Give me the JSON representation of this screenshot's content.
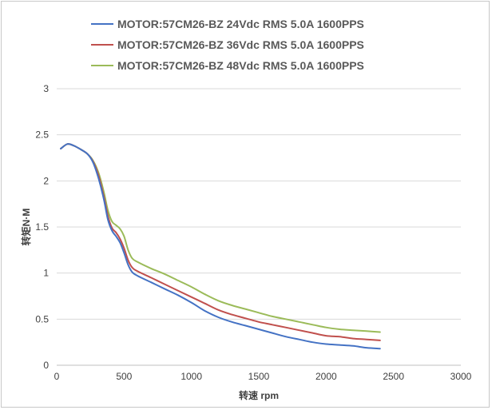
{
  "chart_data": {
    "type": "line",
    "title": "",
    "xlabel": "转速 rpm",
    "ylabel": "转矩N·M",
    "xlim": [
      0,
      3000
    ],
    "ylim": [
      0,
      3
    ],
    "xticks": [
      "0",
      "500",
      "1000",
      "1500",
      "2000",
      "2500",
      "3000"
    ],
    "yticks": [
      "0",
      "0.5",
      "1",
      "1.5",
      "2",
      "2.5",
      "3"
    ],
    "grid": true,
    "legend_position": "top",
    "series": [
      {
        "name": "MOTOR:57CM26-BZ 24Vdc RMS 5.0A 1600PPS",
        "color": "#4472c4",
        "x": [
          30,
          80,
          130,
          180,
          230,
          270,
          310,
          350,
          380,
          410,
          440,
          470,
          500,
          530,
          560,
          600,
          700,
          800,
          900,
          1000,
          1100,
          1200,
          1300,
          1400,
          1500,
          1600,
          1700,
          1800,
          1900,
          2000,
          2100,
          2200,
          2300,
          2400
        ],
        "y": [
          2.35,
          2.4,
          2.38,
          2.34,
          2.29,
          2.2,
          2.03,
          1.8,
          1.58,
          1.46,
          1.4,
          1.33,
          1.22,
          1.09,
          1.01,
          0.97,
          0.9,
          0.83,
          0.76,
          0.68,
          0.59,
          0.52,
          0.47,
          0.43,
          0.39,
          0.35,
          0.31,
          0.28,
          0.25,
          0.23,
          0.22,
          0.21,
          0.19,
          0.18
        ]
      },
      {
        "name": "MOTOR:57CM26-BZ 36Vdc RMS 5.0A 1600PPS",
        "color": "#c0504d",
        "x": [
          30,
          80,
          130,
          180,
          230,
          270,
          310,
          350,
          380,
          410,
          440,
          470,
          500,
          530,
          560,
          600,
          700,
          800,
          900,
          1000,
          1100,
          1200,
          1300,
          1400,
          1500,
          1600,
          1700,
          1800,
          1900,
          2000,
          2100,
          2200,
          2300,
          2400
        ],
        "y": [
          2.35,
          2.4,
          2.38,
          2.34,
          2.29,
          2.21,
          2.06,
          1.83,
          1.62,
          1.49,
          1.44,
          1.37,
          1.27,
          1.14,
          1.06,
          1.02,
          0.95,
          0.88,
          0.81,
          0.74,
          0.67,
          0.6,
          0.55,
          0.51,
          0.47,
          0.44,
          0.41,
          0.38,
          0.35,
          0.32,
          0.31,
          0.29,
          0.28,
          0.27
        ]
      },
      {
        "name": "MOTOR:57CM26-BZ 48Vdc RMS 5.0A 1600PPS",
        "color": "#9bbb59",
        "x": [
          30,
          80,
          130,
          180,
          230,
          270,
          310,
          350,
          380,
          410,
          440,
          470,
          500,
          530,
          560,
          600,
          700,
          800,
          900,
          1000,
          1100,
          1200,
          1300,
          1400,
          1500,
          1600,
          1700,
          1800,
          1900,
          2000,
          2100,
          2200,
          2300,
          2400
        ],
        "y": [
          2.35,
          2.4,
          2.38,
          2.34,
          2.29,
          2.22,
          2.09,
          1.88,
          1.68,
          1.56,
          1.52,
          1.48,
          1.4,
          1.25,
          1.16,
          1.12,
          1.05,
          0.99,
          0.92,
          0.85,
          0.77,
          0.7,
          0.65,
          0.61,
          0.57,
          0.53,
          0.5,
          0.47,
          0.44,
          0.41,
          0.39,
          0.38,
          0.37,
          0.36
        ]
      }
    ]
  }
}
